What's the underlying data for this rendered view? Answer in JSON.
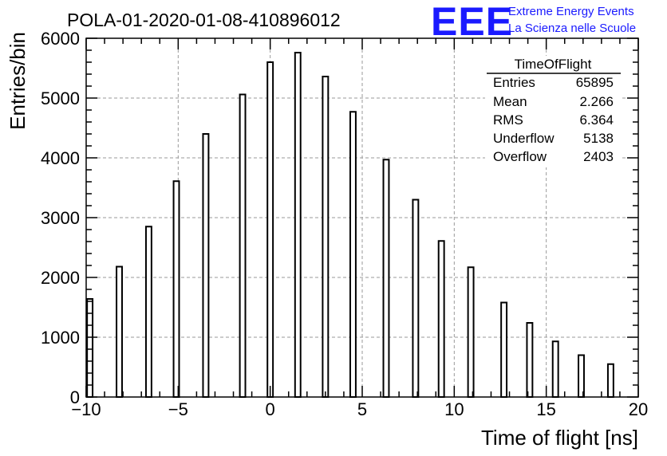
{
  "title": "POLA-01-2020-01-08-410896012",
  "logo": {
    "text": "EEE",
    "line1": "Extreme Energy Events",
    "line2": "La Scienza nelle Scuole"
  },
  "chart_data": {
    "type": "bar",
    "xlabel": "Time of flight [ns]",
    "ylabel": "Entries/bin",
    "xlim": [
      -10,
      20
    ],
    "ylim": [
      0,
      6000
    ],
    "grid": true,
    "legend_position": "top-right",
    "x_ticks": [
      "−10",
      "−5",
      "0",
      "5",
      "10",
      "15",
      "20"
    ],
    "y_ticks": [
      "0",
      "1000",
      "2000",
      "3000",
      "4000",
      "5000",
      "6000"
    ],
    "bin_width": 0.3,
    "x": [
      -9.8,
      -8.2,
      -6.6,
      -5.1,
      -3.5,
      -1.5,
      0.0,
      1.5,
      3.0,
      4.5,
      6.3,
      7.9,
      9.3,
      10.9,
      12.7,
      14.1,
      15.5,
      16.9,
      18.5
    ],
    "values": [
      1640,
      2180,
      2850,
      3610,
      4400,
      5060,
      5600,
      5760,
      5360,
      4770,
      3970,
      3300,
      2610,
      2170,
      1580,
      1240,
      930,
      700,
      550
    ]
  },
  "stats_box": {
    "title": "TimeOfFlight",
    "rows": [
      {
        "label": "Entries",
        "value": "65895"
      },
      {
        "label": "Mean",
        "value": "2.266"
      },
      {
        "label": "RMS",
        "value": "6.364"
      },
      {
        "label": "Underflow",
        "value": "5138"
      },
      {
        "label": "Overflow",
        "value": "2403"
      }
    ]
  }
}
